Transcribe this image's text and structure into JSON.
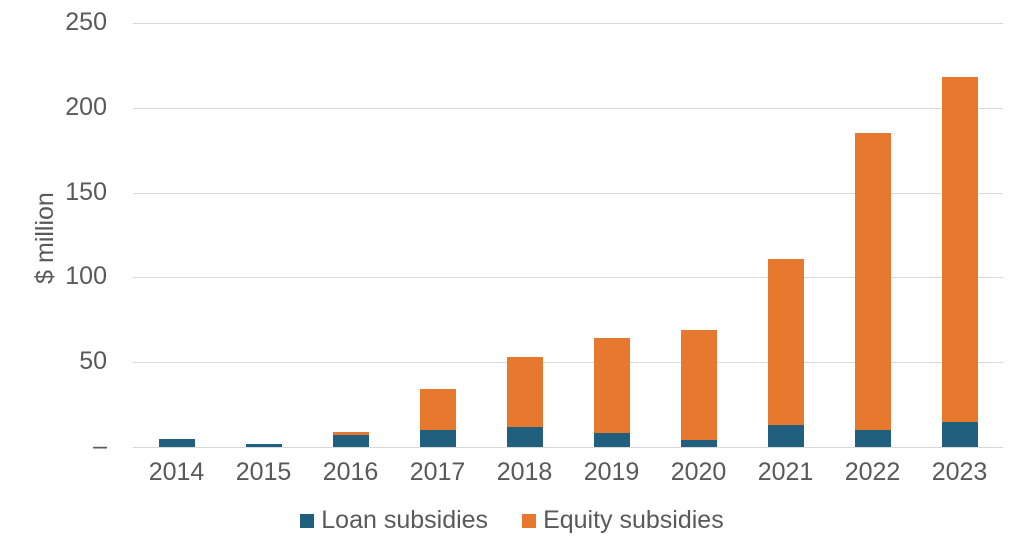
{
  "chart_data": {
    "type": "bar",
    "stacked": true,
    "title": "",
    "xlabel": "",
    "ylabel": "$ million",
    "ylim": [
      0,
      250
    ],
    "grid": "horizontal",
    "legend_position": "bottom",
    "categories": [
      "2014",
      "2015",
      "2016",
      "2017",
      "2018",
      "2019",
      "2020",
      "2021",
      "2022",
      "2023"
    ],
    "series": [
      {
        "name": "Loan subsidies",
        "color": "#20607E",
        "values": [
          5,
          2,
          7,
          10,
          12,
          8,
          4,
          13,
          10,
          15
        ]
      },
      {
        "name": "Equity subsidies",
        "color": "#E7792F",
        "values": [
          0,
          0,
          2,
          24,
          41,
          56,
          65,
          98,
          175,
          203
        ]
      }
    ],
    "yticks": [
      {
        "value": 0,
        "label": "–"
      },
      {
        "value": 50,
        "label": "50"
      },
      {
        "value": 100,
        "label": "100"
      },
      {
        "value": 150,
        "label": "150"
      },
      {
        "value": 200,
        "label": "200"
      },
      {
        "value": 250,
        "label": "250"
      }
    ],
    "axis_text_color": "#595959",
    "gridline_color": "#D9D9D9"
  }
}
